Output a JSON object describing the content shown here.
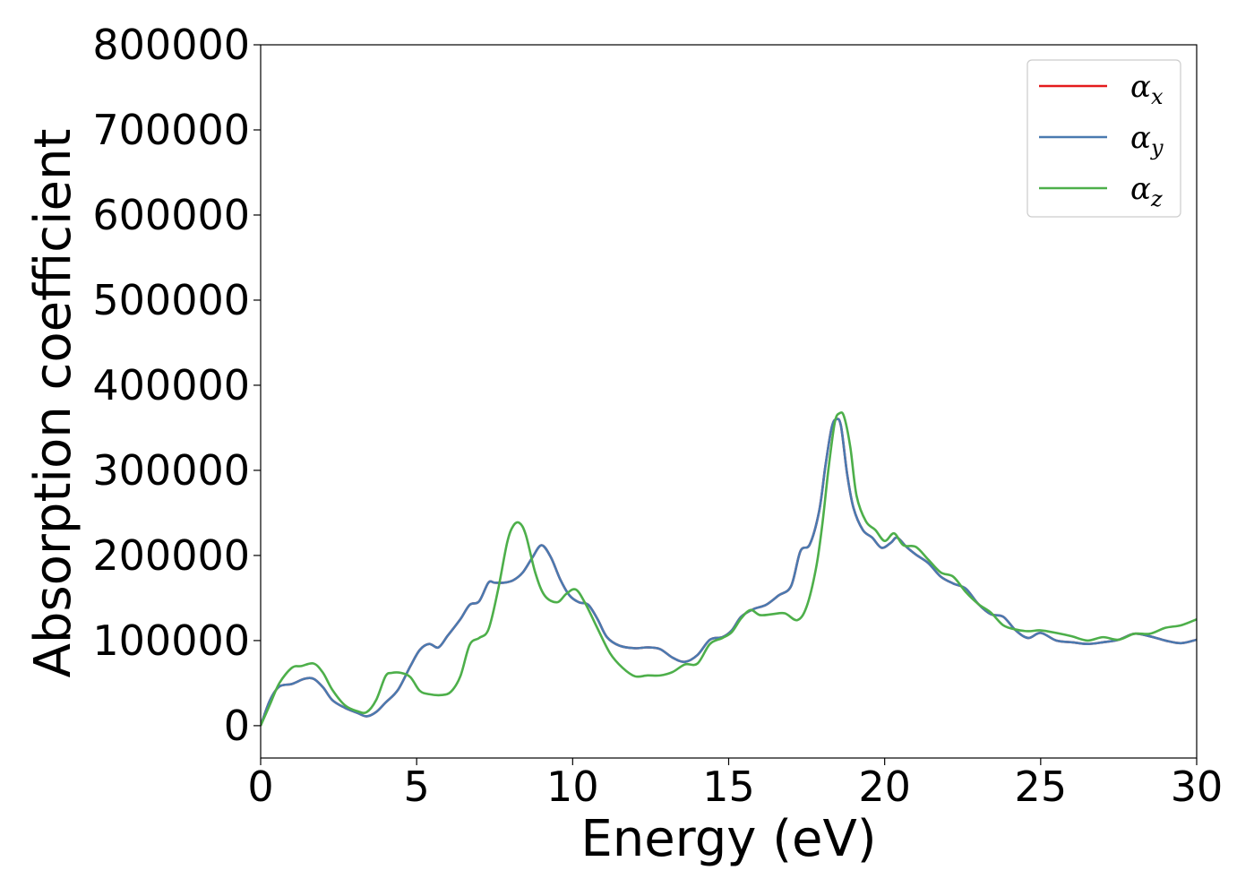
{
  "chart_data": {
    "type": "line",
    "xlabel": "Energy (eV)",
    "ylabel": "Absorption coefficient",
    "xlim": [
      0,
      30
    ],
    "ylim": [
      -38000,
      800000
    ],
    "xticks": [
      0,
      5,
      10,
      15,
      20,
      25,
      30
    ],
    "yticks": [
      0,
      100000,
      200000,
      300000,
      400000,
      500000,
      600000,
      700000,
      800000
    ],
    "grid": false,
    "legend_position": "top-right",
    "series": [
      {
        "name": "αx",
        "legend_base": "α",
        "legend_sub": "x",
        "color": "#e41a1c",
        "x": [
          0,
          0.3,
          0.6,
          1.0,
          1.4,
          1.7,
          2.0,
          2.3,
          2.7,
          3.1,
          3.4,
          3.7,
          4.0,
          4.4,
          4.8,
          5.1,
          5.4,
          5.7,
          6.0,
          6.4,
          6.7,
          7.0,
          7.3,
          7.5,
          7.8,
          8.1,
          8.4,
          8.7,
          9.0,
          9.3,
          9.6,
          9.9,
          10.2,
          10.5,
          10.8,
          11.1,
          11.5,
          12.0,
          12.4,
          12.8,
          13.2,
          13.6,
          14.0,
          14.4,
          14.8,
          15.1,
          15.4,
          15.8,
          16.2,
          16.6,
          17.0,
          17.3,
          17.6,
          17.9,
          18.1,
          18.3,
          18.45,
          18.6,
          18.8,
          19.0,
          19.3,
          19.6,
          19.9,
          20.2,
          20.4,
          20.7,
          21.0,
          21.4,
          21.8,
          22.2,
          22.6,
          23.0,
          23.4,
          23.8,
          24.2,
          24.6,
          25.0,
          25.5,
          26.0,
          26.5,
          27.0,
          27.5,
          28.0,
          28.5,
          29.0,
          29.5,
          30.0
        ],
        "y": [
          0,
          30000,
          46000,
          49000,
          55000,
          55000,
          45000,
          30000,
          21000,
          15000,
          11000,
          16000,
          27000,
          42000,
          70000,
          89000,
          96000,
          92000,
          106000,
          125000,
          142000,
          146000,
          168000,
          168000,
          168000,
          171000,
          180000,
          197000,
          212000,
          198000,
          172000,
          153000,
          145000,
          142000,
          125000,
          104000,
          94000,
          91000,
          92000,
          90000,
          80000,
          75000,
          83000,
          101000,
          104000,
          112000,
          128000,
          137000,
          142000,
          153000,
          164000,
          205000,
          213000,
          252000,
          305000,
          350000,
          360000,
          352000,
          295000,
          256000,
          230000,
          221000,
          209000,
          215000,
          221000,
          210000,
          201000,
          191000,
          175000,
          167000,
          161000,
          143000,
          131000,
          128000,
          112000,
          103000,
          109000,
          100000,
          98000,
          96000,
          98000,
          101000,
          108000,
          105000,
          100000,
          97000,
          101000
        ]
      },
      {
        "name": "αy",
        "legend_base": "α",
        "legend_sub": "y",
        "color": "#4a7ab0",
        "x": [
          0,
          0.3,
          0.6,
          1.0,
          1.4,
          1.7,
          2.0,
          2.3,
          2.7,
          3.1,
          3.4,
          3.7,
          4.0,
          4.4,
          4.8,
          5.1,
          5.4,
          5.7,
          6.0,
          6.4,
          6.7,
          7.0,
          7.3,
          7.5,
          7.8,
          8.1,
          8.4,
          8.7,
          9.0,
          9.3,
          9.6,
          9.9,
          10.2,
          10.5,
          10.8,
          11.1,
          11.5,
          12.0,
          12.4,
          12.8,
          13.2,
          13.6,
          14.0,
          14.4,
          14.8,
          15.1,
          15.4,
          15.8,
          16.2,
          16.6,
          17.0,
          17.3,
          17.6,
          17.9,
          18.1,
          18.3,
          18.45,
          18.6,
          18.8,
          19.0,
          19.3,
          19.6,
          19.9,
          20.2,
          20.4,
          20.7,
          21.0,
          21.4,
          21.8,
          22.2,
          22.6,
          23.0,
          23.4,
          23.8,
          24.2,
          24.6,
          25.0,
          25.5,
          26.0,
          26.5,
          27.0,
          27.5,
          28.0,
          28.5,
          29.0,
          29.5,
          30.0
        ],
        "y": [
          0,
          30000,
          46000,
          49000,
          55000,
          55000,
          45000,
          30000,
          21000,
          15000,
          11000,
          16000,
          27000,
          42000,
          70000,
          89000,
          96000,
          92000,
          106000,
          125000,
          142000,
          146000,
          168000,
          168000,
          168000,
          171000,
          180000,
          197000,
          212000,
          198000,
          172000,
          153000,
          145000,
          142000,
          125000,
          104000,
          94000,
          91000,
          92000,
          90000,
          80000,
          75000,
          83000,
          101000,
          104000,
          112000,
          128000,
          137000,
          142000,
          153000,
          164000,
          205000,
          213000,
          252000,
          305000,
          350000,
          360000,
          352000,
          295000,
          256000,
          230000,
          221000,
          209000,
          215000,
          221000,
          210000,
          201000,
          191000,
          175000,
          167000,
          161000,
          143000,
          131000,
          128000,
          112000,
          103000,
          109000,
          100000,
          98000,
          96000,
          98000,
          101000,
          108000,
          105000,
          100000,
          97000,
          101000
        ]
      },
      {
        "name": "αz",
        "legend_base": "α",
        "legend_sub": "z",
        "color": "#4daf4a",
        "x": [
          0,
          0.3,
          0.6,
          1.0,
          1.3,
          1.7,
          2.0,
          2.3,
          2.7,
          3.1,
          3.4,
          3.7,
          4.0,
          4.2,
          4.5,
          4.8,
          5.1,
          5.4,
          5.8,
          6.1,
          6.4,
          6.7,
          7.0,
          7.3,
          7.6,
          7.9,
          8.1,
          8.3,
          8.5,
          8.8,
          9.1,
          9.5,
          9.8,
          10.1,
          10.4,
          10.8,
          11.2,
          11.6,
          12.0,
          12.4,
          12.8,
          13.2,
          13.6,
          14.0,
          14.4,
          14.8,
          15.1,
          15.4,
          15.7,
          16.0,
          16.4,
          16.8,
          17.2,
          17.5,
          17.8,
          18.0,
          18.2,
          18.4,
          18.55,
          18.7,
          18.9,
          19.1,
          19.4,
          19.7,
          20.0,
          20.3,
          20.6,
          21.0,
          21.4,
          21.8,
          22.2,
          22.6,
          23.0,
          23.4,
          23.8,
          24.2,
          24.6,
          25.0,
          25.5,
          26.0,
          26.5,
          27.0,
          27.5,
          28.0,
          28.5,
          29.0,
          29.5,
          30.0
        ],
        "y": [
          0,
          25000,
          50000,
          68000,
          70000,
          73000,
          62000,
          42000,
          24000,
          17000,
          16000,
          30000,
          58000,
          62000,
          62000,
          57000,
          41000,
          37000,
          36000,
          40000,
          58000,
          95000,
          103000,
          113000,
          158000,
          215000,
          235000,
          238000,
          224000,
          180000,
          153000,
          145000,
          155000,
          160000,
          144000,
          114000,
          85000,
          68000,
          58000,
          59000,
          59000,
          63000,
          72000,
          73000,
          96000,
          103000,
          110000,
          126000,
          136000,
          130000,
          131000,
          132000,
          124000,
          140000,
          185000,
          236000,
          302000,
          356000,
          367000,
          363000,
          327000,
          270000,
          240000,
          230000,
          217000,
          226000,
          212000,
          210000,
          195000,
          180000,
          175000,
          157000,
          143000,
          133000,
          118000,
          113000,
          111000,
          112000,
          109000,
          105000,
          100000,
          104000,
          101000,
          108000,
          108000,
          115000,
          118000,
          125000
        ]
      }
    ]
  }
}
